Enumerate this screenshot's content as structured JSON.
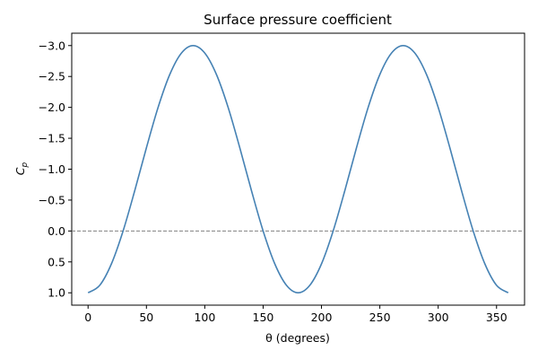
{
  "chart_data": {
    "type": "line",
    "title": "Surface pressure coefficient",
    "xlabel": "θ (degrees)",
    "ylabel_symbol": "C",
    "ylabel_subscript": "p",
    "xlim": [
      -14,
      374
    ],
    "ylim": [
      1.2,
      -3.2
    ],
    "y_inverted": true,
    "xticks": [
      0,
      50,
      100,
      150,
      200,
      250,
      300,
      350
    ],
    "yticks": [
      -3.0,
      -2.5,
      -2.0,
      -1.5,
      -1.0,
      -0.5,
      0.0,
      0.5,
      1.0
    ],
    "ytick_labels": [
      "−3.0",
      "−2.5",
      "−2.0",
      "−1.5",
      "−1.0",
      "−0.5",
      "0.0",
      "0.5",
      "1.0"
    ],
    "xtick_labels": [
      "0",
      "50",
      "100",
      "150",
      "200",
      "250",
      "300",
      "350"
    ],
    "grid": false,
    "reference_line": {
      "y": 0.0,
      "style": "dashed",
      "color": "#808080"
    },
    "series": [
      {
        "color": "#4682b4",
        "x": [
          0,
          10,
          20,
          30,
          40,
          50,
          60,
          70,
          80,
          90,
          100,
          110,
          120,
          130,
          140,
          150,
          160,
          170,
          180,
          190,
          200,
          210,
          220,
          230,
          240,
          250,
          260,
          270,
          280,
          290,
          300,
          310,
          320,
          330,
          340,
          350,
          360
        ],
        "y": [
          1.0,
          0.879,
          0.532,
          0.0,
          -0.653,
          -1.347,
          -2.0,
          -2.532,
          -2.879,
          -3.0,
          -2.879,
          -2.532,
          -2.0,
          -1.347,
          -0.653,
          0.0,
          0.532,
          0.879,
          1.0,
          0.879,
          0.532,
          0.0,
          -0.653,
          -1.347,
          -2.0,
          -2.532,
          -2.879,
          -3.0,
          -2.879,
          -2.532,
          -2.0,
          -1.347,
          -0.653,
          0.0,
          0.532,
          0.879,
          1.0
        ]
      }
    ]
  }
}
